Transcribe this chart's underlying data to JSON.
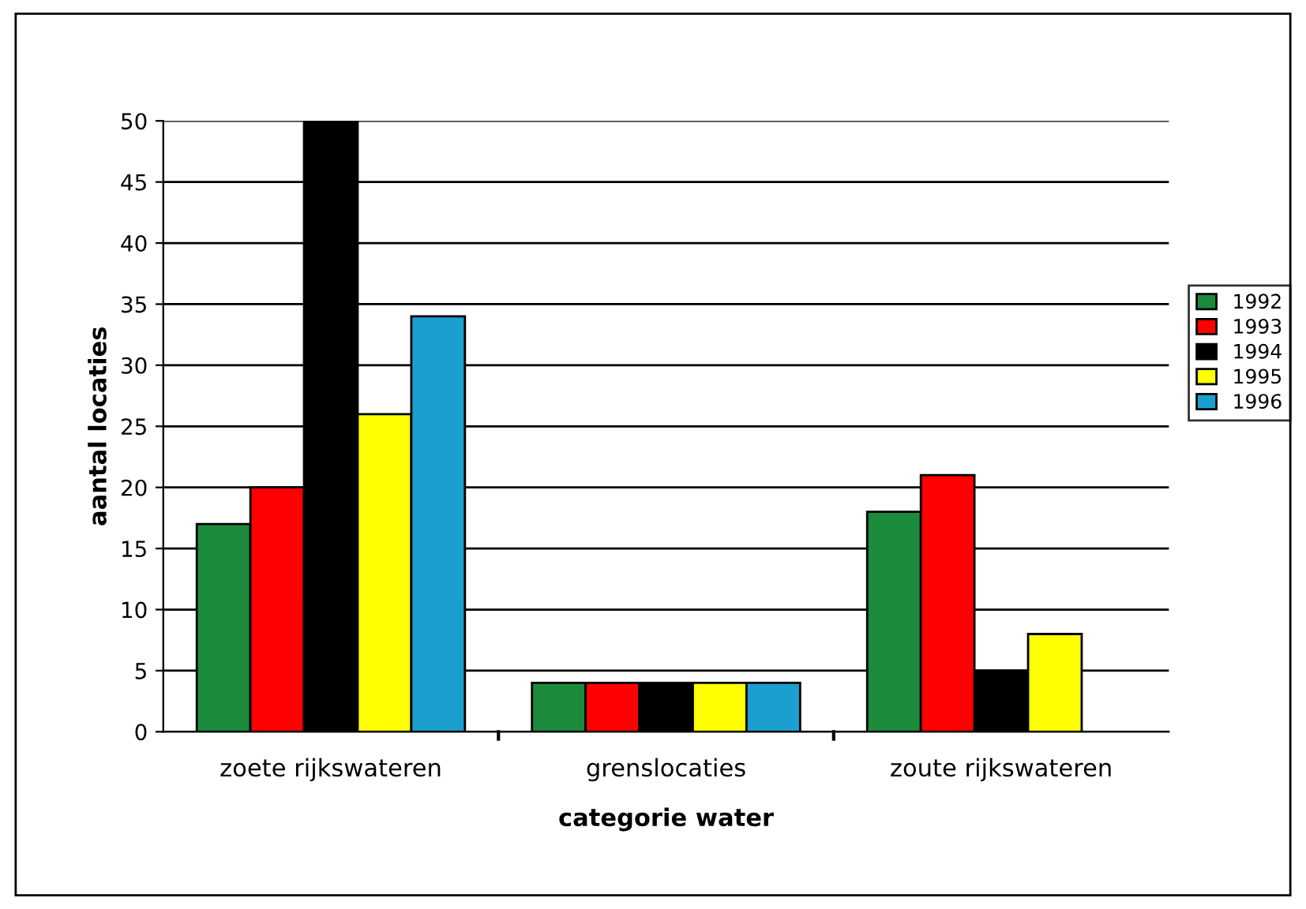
{
  "chart_data": {
    "type": "bar",
    "xlabel": "categorie water",
    "ylabel": "aantal locaties",
    "categories": [
      "zoete rijkswateren",
      "grenslocaties",
      "zoute rijkswateren"
    ],
    "series": [
      {
        "name": "1992",
        "color": "#1b8a3a",
        "values": [
          17,
          4,
          18
        ]
      },
      {
        "name": "1993",
        "color": "#ff0000",
        "values": [
          20,
          4,
          21
        ]
      },
      {
        "name": "1994",
        "color": "#000000",
        "values": [
          50,
          4,
          5
        ]
      },
      {
        "name": "1995",
        "color": "#ffff00",
        "values": [
          26,
          4,
          8
        ]
      },
      {
        "name": "1996",
        "color": "#1a9fcf",
        "values": [
          34,
          4,
          null
        ]
      }
    ],
    "ylim": [
      0,
      50
    ],
    "yticks": [
      0,
      5,
      10,
      15,
      20,
      25,
      30,
      35,
      40,
      45,
      50
    ],
    "grid": "y",
    "legend": "right"
  }
}
